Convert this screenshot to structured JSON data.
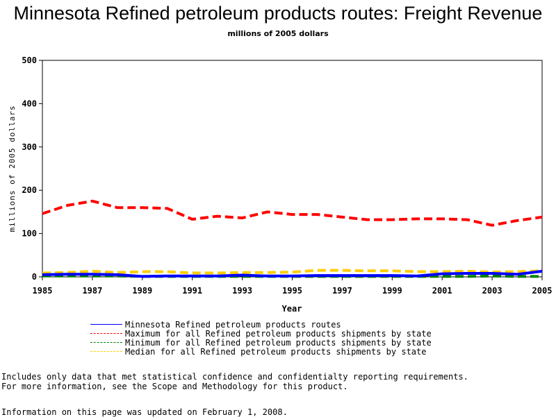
{
  "chart_data": {
    "type": "line",
    "title": "Minnesota Refined petroleum products routes: Freight Revenue",
    "subtitle": "millions of 2005 dollars",
    "xlabel": "Year",
    "ylabel": "millions of 2005 dollars",
    "xlim": [
      1985,
      2005
    ],
    "ylim": [
      0,
      500
    ],
    "x_ticks": [
      "1985",
      "1987",
      "1989",
      "1991",
      "1993",
      "1995",
      "1997",
      "1999",
      "2001",
      "2003",
      "2005"
    ],
    "y_ticks": [
      "0",
      "100",
      "200",
      "300",
      "400",
      "500"
    ],
    "x": [
      1985,
      1986,
      1987,
      1988,
      1989,
      1990,
      1991,
      1992,
      1993,
      1994,
      1995,
      1996,
      1997,
      1998,
      1999,
      2000,
      2001,
      2002,
      2003,
      2004,
      2005
    ],
    "series": [
      {
        "name": "Minnesota Refined petroleum products routes",
        "color": "#0000ff",
        "style": "solid",
        "values": [
          5,
          6,
          6,
          5,
          1,
          2,
          2,
          2,
          4,
          2,
          2,
          3,
          3,
          3,
          3,
          2,
          7,
          8,
          8,
          6,
          13
        ]
      },
      {
        "name": "Maximum for all Refined petroleum products shipments by state",
        "color": "#ff0000",
        "style": "dashed",
        "values": [
          146,
          165,
          175,
          160,
          160,
          158,
          133,
          140,
          136,
          150,
          144,
          144,
          138,
          132,
          132,
          134,
          134,
          132,
          119,
          130,
          138
        ]
      },
      {
        "name": "Minimum for all Refined petroleum products shipments by state",
        "color": "#008000",
        "style": "dashed",
        "values": [
          2,
          2,
          2,
          2,
          1,
          1,
          1,
          1,
          1,
          1,
          1,
          1,
          1,
          1,
          1,
          1,
          1,
          1,
          2,
          1,
          1
        ]
      },
      {
        "name": "Median for all Refined petroleum products shipments by state",
        "color": "#ffcc00",
        "style": "dashed",
        "values": [
          9,
          10,
          13,
          10,
          12,
          12,
          9,
          9,
          10,
          10,
          11,
          15,
          15,
          14,
          14,
          12,
          12,
          13,
          11,
          12,
          14
        ]
      }
    ],
    "grid": false,
    "legend_position": "bottom"
  },
  "notes": {
    "line1": "Includes only data that met statistical confidence and confidentialty reporting requirements.",
    "line2": "For more information, see the Scope and Methodology for this product.",
    "updated": "Information on this page was updated on February 1, 2008."
  }
}
